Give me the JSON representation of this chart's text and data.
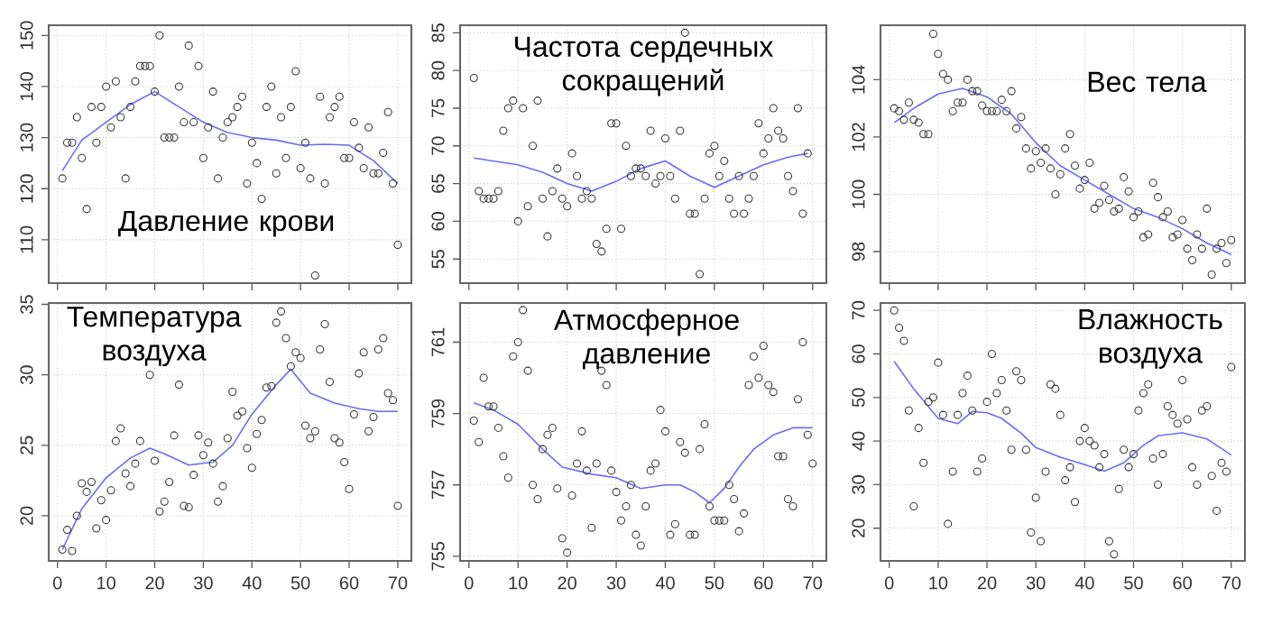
{
  "chart_data": [
    {
      "type": "scatter",
      "title": "Давление крови",
      "xlim": [
        -1.8,
        72.8
      ],
      "xticks": [
        0,
        10,
        20,
        30,
        40,
        50,
        60,
        70
      ],
      "ylim": [
        101.5,
        152
      ],
      "yticks": [
        110,
        120,
        130,
        140,
        150
      ],
      "grid": true,
      "marker": "circle",
      "tick_labels": "y",
      "series": [
        {
          "type": "scatter",
          "color": "#333333",
          "x": [
            1,
            2,
            3,
            4,
            5,
            6,
            7,
            8,
            9,
            10,
            11,
            12,
            13,
            14,
            15,
            16,
            17,
            18,
            19,
            20,
            21,
            22,
            23,
            24,
            25,
            26,
            27,
            28,
            29,
            30,
            31,
            32,
            33,
            34,
            35,
            36,
            37,
            38,
            39,
            40,
            41,
            42,
            43,
            44,
            45,
            46,
            47,
            48,
            49,
            50,
            51,
            52,
            53,
            54,
            55,
            56,
            57,
            58,
            59,
            60,
            61,
            62,
            63,
            64,
            65,
            66,
            67,
            68,
            69,
            70
          ],
          "values": [
            122,
            129,
            129,
            134,
            126,
            116,
            136,
            129,
            136,
            140,
            132,
            141,
            134,
            122,
            136,
            141,
            144,
            144,
            144,
            139,
            150,
            130,
            130,
            130,
            140,
            133,
            148,
            133,
            144,
            126,
            132,
            139,
            122,
            130,
            133,
            134,
            136,
            138,
            121,
            129,
            125,
            118,
            136,
            140,
            123,
            134,
            126,
            136,
            143,
            124,
            129,
            122,
            103,
            138,
            121,
            134,
            136,
            138,
            126,
            126,
            133,
            128,
            124,
            132,
            123,
            123,
            127,
            135,
            121,
            109
          ]
        },
        {
          "type": "line",
          "color": "#6b6bf5",
          "x": [
            1,
            5,
            10,
            15,
            20,
            25,
            30,
            35,
            40,
            45,
            50,
            55,
            60,
            65,
            70
          ],
          "marker": "none",
          "values": [
            123.5,
            129.5,
            133,
            136.5,
            139,
            136,
            133,
            131,
            130,
            129.5,
            128.5,
            128.7,
            128.5,
            125.5,
            121
          ]
        }
      ]
    },
    {
      "type": "scatter",
      "title": "Частота сердечных сокращений",
      "xlim": [
        -1.8,
        72.8
      ],
      "xticks": [
        0,
        10,
        20,
        30,
        40,
        50,
        60,
        70
      ],
      "ylim": [
        51.8,
        86
      ],
      "yticks": [
        55,
        60,
        65,
        70,
        75,
        80,
        85
      ],
      "grid": true,
      "marker": "circle",
      "tick_labels": "y",
      "series": [
        {
          "type": "scatter",
          "color": "#333333",
          "x": [
            1,
            2,
            3,
            4,
            5,
            6,
            7,
            8,
            9,
            10,
            11,
            12,
            13,
            14,
            15,
            16,
            17,
            18,
            19,
            20,
            21,
            22,
            23,
            24,
            25,
            26,
            27,
            28,
            29,
            30,
            31,
            32,
            33,
            34,
            35,
            36,
            37,
            38,
            39,
            40,
            41,
            42,
            43,
            44,
            45,
            46,
            47,
            48,
            49,
            50,
            51,
            52,
            53,
            54,
            55,
            56,
            57,
            58,
            59,
            60,
            61,
            62,
            63,
            64,
            65,
            66,
            67,
            68,
            69
          ],
          "values": [
            79,
            64,
            63,
            63,
            63,
            64,
            72,
            75,
            76,
            60,
            75,
            62,
            70,
            76,
            63,
            58,
            64,
            67,
            63,
            62,
            69,
            66,
            63,
            64,
            63,
            57,
            56,
            59,
            73,
            73,
            59,
            70,
            66,
            67,
            67,
            66,
            72,
            65,
            66,
            71,
            66,
            63,
            72,
            85,
            61,
            61,
            53,
            63,
            69,
            70,
            66,
            68,
            63,
            61,
            66,
            61,
            63,
            66,
            73,
            69,
            71,
            75,
            72,
            71,
            66,
            64,
            75,
            61,
            69
          ]
        },
        {
          "type": "line",
          "color": "#6b6bf5",
          "x": [
            1,
            10,
            15,
            20,
            25,
            30,
            35,
            40,
            45,
            50,
            55,
            60,
            65,
            69
          ],
          "marker": "none",
          "values": [
            68.4,
            67.5,
            66.5,
            65,
            64,
            65.3,
            67,
            68,
            66,
            64.5,
            66,
            67.5,
            68.5,
            69
          ]
        }
      ]
    },
    {
      "type": "scatter",
      "title": "Вес тела",
      "xlim": [
        -1.8,
        72.8
      ],
      "xticks": [
        0,
        10,
        20,
        30,
        40,
        50,
        60,
        70
      ],
      "ylim": [
        96.9,
        105.9
      ],
      "yticks": [
        98,
        100,
        102,
        104
      ],
      "grid": true,
      "marker": "circle",
      "tick_labels": "y",
      "series": [
        {
          "type": "scatter",
          "color": "#333333",
          "x": [
            1,
            2,
            3,
            4,
            5,
            6,
            7,
            8,
            9,
            10,
            11,
            12,
            13,
            14,
            15,
            16,
            17,
            18,
            19,
            20,
            21,
            22,
            23,
            24,
            25,
            26,
            27,
            28,
            29,
            30,
            31,
            32,
            33,
            34,
            35,
            36,
            37,
            38,
            39,
            40,
            41,
            42,
            43,
            44,
            45,
            46,
            47,
            48,
            49,
            50,
            51,
            52,
            53,
            54,
            55,
            56,
            57,
            58,
            59,
            60,
            61,
            62,
            63,
            64,
            65,
            66,
            67,
            68,
            69,
            70
          ],
          "values": [
            103.0,
            102.9,
            102.6,
            103.2,
            102.6,
            102.5,
            102.1,
            102.1,
            105.6,
            104.9,
            104.2,
            104.0,
            102.9,
            103.2,
            103.2,
            104.0,
            103.6,
            103.6,
            103.1,
            102.9,
            102.9,
            102.9,
            103.3,
            102.9,
            103.6,
            102.3,
            102.7,
            101.6,
            100.9,
            101.5,
            101.1,
            101.6,
            100.9,
            100.0,
            100.7,
            101.6,
            102.1,
            101.0,
            100.2,
            100.5,
            101.1,
            99.5,
            99.7,
            100.3,
            99.8,
            99.4,
            99.5,
            100.6,
            100.1,
            99.2,
            99.4,
            98.5,
            98.6,
            100.4,
            99.9,
            99.2,
            99.4,
            98.5,
            98.6,
            99.1,
            98.1,
            97.7,
            98.6,
            98.1,
            99.5,
            97.2,
            98.1,
            98.3,
            97.6,
            98.4
          ]
        },
        {
          "type": "line",
          "color": "#6b6bf5",
          "x": [
            1,
            5,
            10,
            15,
            20,
            25,
            30,
            35,
            40,
            45,
            50,
            55,
            60,
            65,
            70
          ],
          "marker": "none",
          "values": [
            102.5,
            103.0,
            103.5,
            103.7,
            103.4,
            102.8,
            101.8,
            101.0,
            100.5,
            100.0,
            99.5,
            99.2,
            98.8,
            98.3,
            97.9
          ]
        }
      ]
    },
    {
      "type": "scatter",
      "title": "Температура воздуха",
      "xlim": [
        -1.8,
        72.8
      ],
      "xticks": [
        0,
        10,
        20,
        30,
        40,
        50,
        60,
        70
      ],
      "ylim": [
        16.8,
        35.1
      ],
      "yticks": [
        20,
        25,
        30,
        35
      ],
      "grid": true,
      "marker": "circle",
      "series": [
        {
          "type": "scatter",
          "color": "#333333",
          "x": [
            1,
            2,
            3,
            4,
            5,
            6,
            7,
            8,
            9,
            10,
            11,
            12,
            13,
            14,
            15,
            16,
            17,
            19,
            20,
            21,
            22,
            23,
            24,
            25,
            26,
            27,
            28,
            29,
            30,
            31,
            32,
            33,
            34,
            35,
            36,
            37,
            38,
            39,
            40,
            41,
            42,
            43,
            44,
            45,
            46,
            47,
            48,
            49,
            50,
            51,
            52,
            53,
            54,
            55,
            56,
            57,
            58,
            59,
            60,
            61,
            62,
            63,
            64,
            65,
            66,
            67,
            68,
            69,
            70
          ],
          "values": [
            17.6,
            19.0,
            17.5,
            20.0,
            22.3,
            21.7,
            22.4,
            19.1,
            21.1,
            19.7,
            21.8,
            25.3,
            26.2,
            23.0,
            22.1,
            23.7,
            25.3,
            30.0,
            23.9,
            20.3,
            21.0,
            22.4,
            25.7,
            29.3,
            20.7,
            20.6,
            22.9,
            25.7,
            24.3,
            25.2,
            23.7,
            21.0,
            22.1,
            25.5,
            28.8,
            27.1,
            27.4,
            24.8,
            23.4,
            25.8,
            26.8,
            29.1,
            29.2,
            33.7,
            34.5,
            32.6,
            30.6,
            31.6,
            31.2,
            26.4,
            25.5,
            26.0,
            31.8,
            33.6,
            29.5,
            25.5,
            25.2,
            23.8,
            21.9,
            27.2,
            30.1,
            31.6,
            26.0,
            27.0,
            31.8,
            32.6,
            28.7,
            28.2,
            20.7
          ]
        },
        {
          "type": "line",
          "color": "#6b6bf5",
          "x": [
            1,
            5,
            10,
            15,
            19,
            22,
            27,
            32,
            36,
            40,
            45,
            48,
            52,
            57,
            62,
            66,
            70
          ],
          "marker": "none",
          "values": [
            17.6,
            20.5,
            22.7,
            24.1,
            24.8,
            24.4,
            23.6,
            23.8,
            25,
            27.2,
            29.3,
            30.4,
            28.7,
            28,
            27.6,
            27.4,
            27.4
          ]
        }
      ]
    },
    {
      "type": "scatter",
      "title": "Атмосферное давление",
      "xlim": [
        -1.8,
        72.8
      ],
      "xticks": [
        0,
        10,
        20,
        30,
        40,
        50,
        60,
        70
      ],
      "ylim": [
        754.87,
        762.1
      ],
      "yticks": [
        755,
        757,
        759,
        761
      ],
      "grid": true,
      "marker": "circle",
      "series": [
        {
          "type": "scatter",
          "color": "#333333",
          "x": [
            1,
            2,
            3,
            4,
            5,
            6,
            7,
            8,
            9,
            10,
            11,
            12,
            13,
            14,
            15,
            16,
            17,
            18,
            19,
            20,
            21,
            22,
            23,
            24,
            25,
            26,
            27,
            28,
            29,
            30,
            31,
            32,
            33,
            34,
            35,
            36,
            37,
            38,
            39,
            40,
            41,
            42,
            43,
            44,
            45,
            46,
            47,
            48,
            49,
            50,
            51,
            52,
            53,
            54,
            55,
            56,
            57,
            58,
            59,
            60,
            61,
            62,
            63,
            64,
            65,
            66,
            67,
            68,
            69,
            70
          ],
          "values": [
            758.8,
            758.2,
            760.0,
            759.2,
            759.2,
            758.6,
            757.8,
            757.2,
            760.6,
            761.0,
            761.9,
            760.2,
            757.0,
            756.6,
            758.0,
            758.4,
            758.6,
            756.9,
            755.5,
            755.1,
            756.7,
            757.6,
            758.5,
            757.4,
            755.8,
            757.6,
            760.2,
            759.8,
            757.4,
            756.8,
            756.0,
            756.4,
            757.0,
            755.6,
            755.3,
            756.4,
            757.4,
            757.6,
            759.1,
            758.5,
            755.6,
            755.9,
            758.2,
            757.9,
            755.6,
            755.6,
            758.0,
            758.7,
            756.4,
            756.0,
            756.0,
            756.0,
            757.0,
            756.6,
            755.7,
            756.2,
            759.8,
            760.6,
            760.0,
            760.9,
            759.8,
            759.6,
            757.8,
            757.8,
            756.6,
            756.4,
            759.4,
            761.0,
            758.4,
            757.6
          ]
        },
        {
          "type": "line",
          "color": "#6b6bf5",
          "x": [
            1,
            5,
            10,
            15,
            19,
            25,
            30,
            35,
            40,
            43,
            46,
            49,
            52,
            55,
            58,
            62,
            66,
            70
          ],
          "marker": "none",
          "values": [
            759.3,
            759.1,
            758.7,
            758.0,
            757.5,
            757.3,
            757.2,
            756.9,
            757.0,
            757.0,
            756.8,
            756.5,
            756.9,
            757.5,
            758.0,
            758.4,
            758.6,
            758.6
          ]
        }
      ]
    },
    {
      "type": "scatter",
      "title": "Влажность воздуха",
      "xlim": [
        -1.8,
        72.8
      ],
      "xticks": [
        0,
        10,
        20,
        30,
        40,
        50,
        60,
        70
      ],
      "ylim": [
        12.5,
        71.7
      ],
      "yticks": [
        20,
        30,
        40,
        50,
        60,
        70
      ],
      "grid": true,
      "marker": "circle",
      "series": [
        {
          "type": "scatter",
          "color": "#333333",
          "x": [
            1,
            2,
            3,
            4,
            5,
            6,
            7,
            8,
            9,
            10,
            11,
            12,
            13,
            14,
            15,
            16,
            17,
            18,
            19,
            20,
            21,
            22,
            23,
            24,
            25,
            26,
            27,
            28,
            29,
            30,
            31,
            32,
            33,
            34,
            35,
            36,
            37,
            38,
            39,
            40,
            41,
            42,
            43,
            44,
            45,
            46,
            47,
            48,
            49,
            50,
            51,
            52,
            53,
            54,
            55,
            56,
            57,
            58,
            59,
            60,
            61,
            62,
            63,
            64,
            65,
            66,
            67,
            68,
            69,
            70
          ],
          "values": [
            70,
            66,
            63,
            47,
            25,
            43,
            35,
            49,
            50,
            58,
            46,
            21,
            33,
            46,
            51,
            55,
            47,
            33,
            36,
            49,
            60,
            51,
            54,
            47,
            38,
            56,
            54,
            38,
            19,
            27,
            17,
            33,
            53,
            52,
            46,
            31,
            34,
            26,
            40,
            43,
            40,
            39,
            34,
            37,
            17,
            14,
            29,
            38,
            34,
            37,
            47,
            51,
            53,
            36,
            30,
            37,
            48,
            46,
            44,
            54,
            45,
            34,
            30,
            47,
            48,
            32,
            24,
            35,
            33,
            57
          ]
        },
        {
          "type": "line",
          "color": "#6b6bf5",
          "x": [
            1,
            5,
            10,
            14,
            17,
            20,
            23,
            27,
            30,
            35,
            40,
            44,
            48,
            52,
            55,
            60,
            65,
            70
          ],
          "marker": "none",
          "values": [
            58.3,
            52,
            45.2,
            44,
            46.8,
            46.5,
            45.2,
            41.8,
            38.5,
            36.3,
            34.6,
            33.1,
            35,
            39,
            41.2,
            41.9,
            40.5,
            36.8
          ]
        }
      ]
    }
  ]
}
